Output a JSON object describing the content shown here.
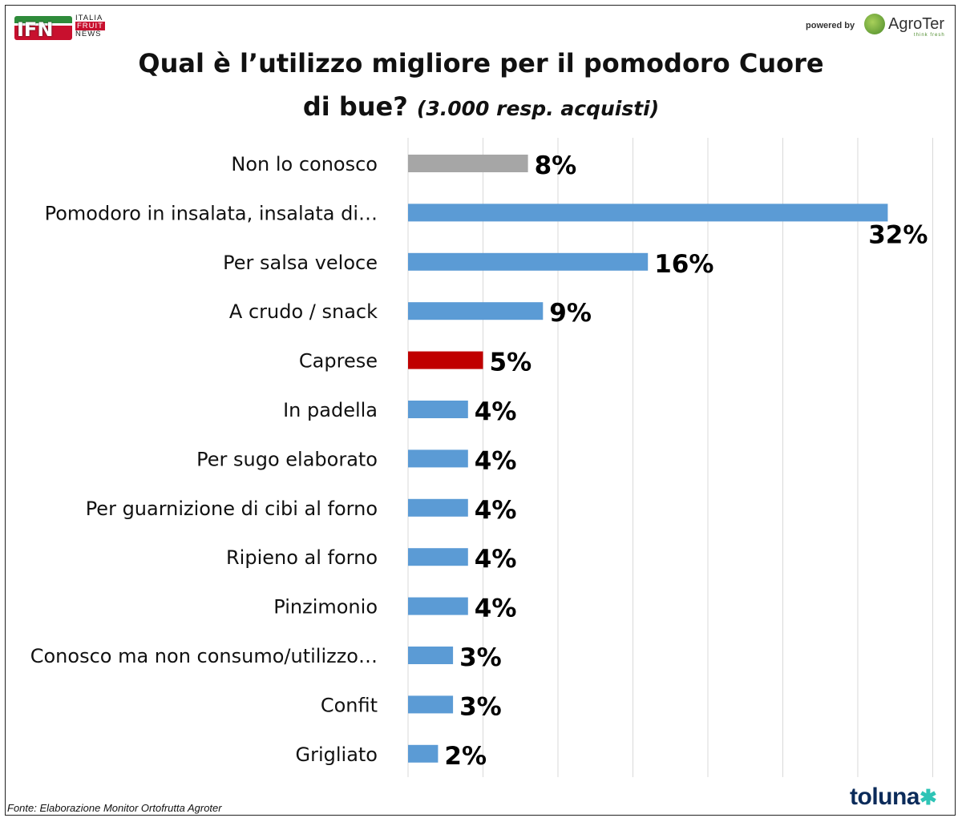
{
  "header": {
    "ifn_logo": {
      "main": "IFN",
      "line1": "ITALIA",
      "line2": "FRUIT",
      "line3": "NEWS"
    },
    "powered_by": "powered by",
    "agroter_logo": {
      "name": "AgroTer",
      "tagline": "think fresh"
    }
  },
  "title": {
    "line1": "Qual è l’utilizzo migliore per il pomodoro Cuore",
    "line2": "di bue?",
    "subtitle": "(3.000 resp. acquisti)"
  },
  "chart_data": {
    "type": "bar",
    "orientation": "horizontal",
    "categories": [
      "Non lo conosco",
      "Pomodoro in insalata, insalata di…",
      "Per salsa veloce",
      "A crudo / snack",
      "Caprese",
      "In padella",
      "Per sugo elaborato",
      "Per guarnizione di cibi al forno",
      "Ripieno al forno",
      "Pinzimonio",
      "Conosco ma non consumo/utilizzo…",
      "Confit",
      "Grigliato"
    ],
    "values": [
      8,
      32,
      16,
      9,
      5,
      4,
      4,
      4,
      4,
      4,
      3,
      3,
      2
    ],
    "value_labels": [
      "8%",
      "32%",
      "16%",
      "9%",
      "5%",
      "4%",
      "4%",
      "4%",
      "4%",
      "4%",
      "3%",
      "3%",
      "2%"
    ],
    "bar_colors": [
      "#a6a6a6",
      "#5b9bd5",
      "#5b9bd5",
      "#5b9bd5",
      "#c00000",
      "#5b9bd5",
      "#5b9bd5",
      "#5b9bd5",
      "#5b9bd5",
      "#5b9bd5",
      "#5b9bd5",
      "#5b9bd5",
      "#5b9bd5"
    ],
    "xlim": [
      0,
      35
    ],
    "grid": true,
    "legend": "none"
  },
  "footer": {
    "source": "Fonte: Elaborazione Monitor Ortofrutta Agroter",
    "brand": "toluna"
  }
}
